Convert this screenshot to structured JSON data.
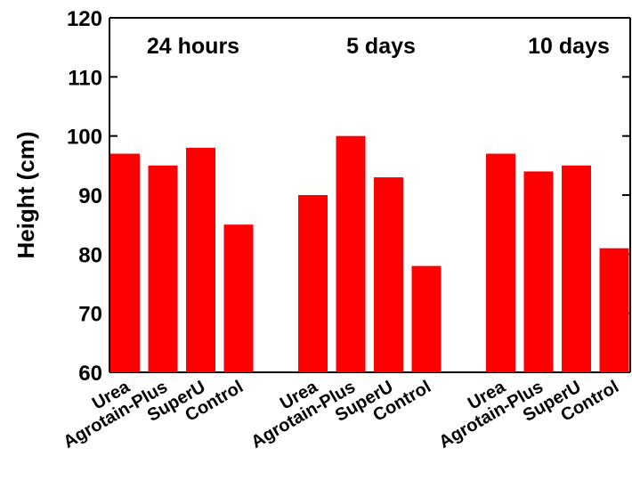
{
  "chart_data": {
    "type": "bar",
    "ylabel": "Height (cm)",
    "ylim": [
      60,
      120
    ],
    "yticks": [
      60,
      70,
      80,
      90,
      100,
      110,
      120
    ],
    "bar_color": "#ff0000",
    "groups": [
      {
        "name": "24 hours",
        "categories": [
          "Urea",
          "Agrotain-Plus",
          "SuperU",
          "Control"
        ],
        "values": [
          97,
          95,
          98,
          85
        ]
      },
      {
        "name": "5 days",
        "categories": [
          "Urea",
          "Agrotain-Plus",
          "SuperU",
          "Control"
        ],
        "values": [
          90,
          100,
          93,
          78
        ]
      },
      {
        "name": "10 days",
        "categories": [
          "Urea",
          "Agrotain-Plus",
          "SuperU",
          "Control"
        ],
        "values": [
          97,
          94,
          95,
          81
        ]
      }
    ]
  }
}
